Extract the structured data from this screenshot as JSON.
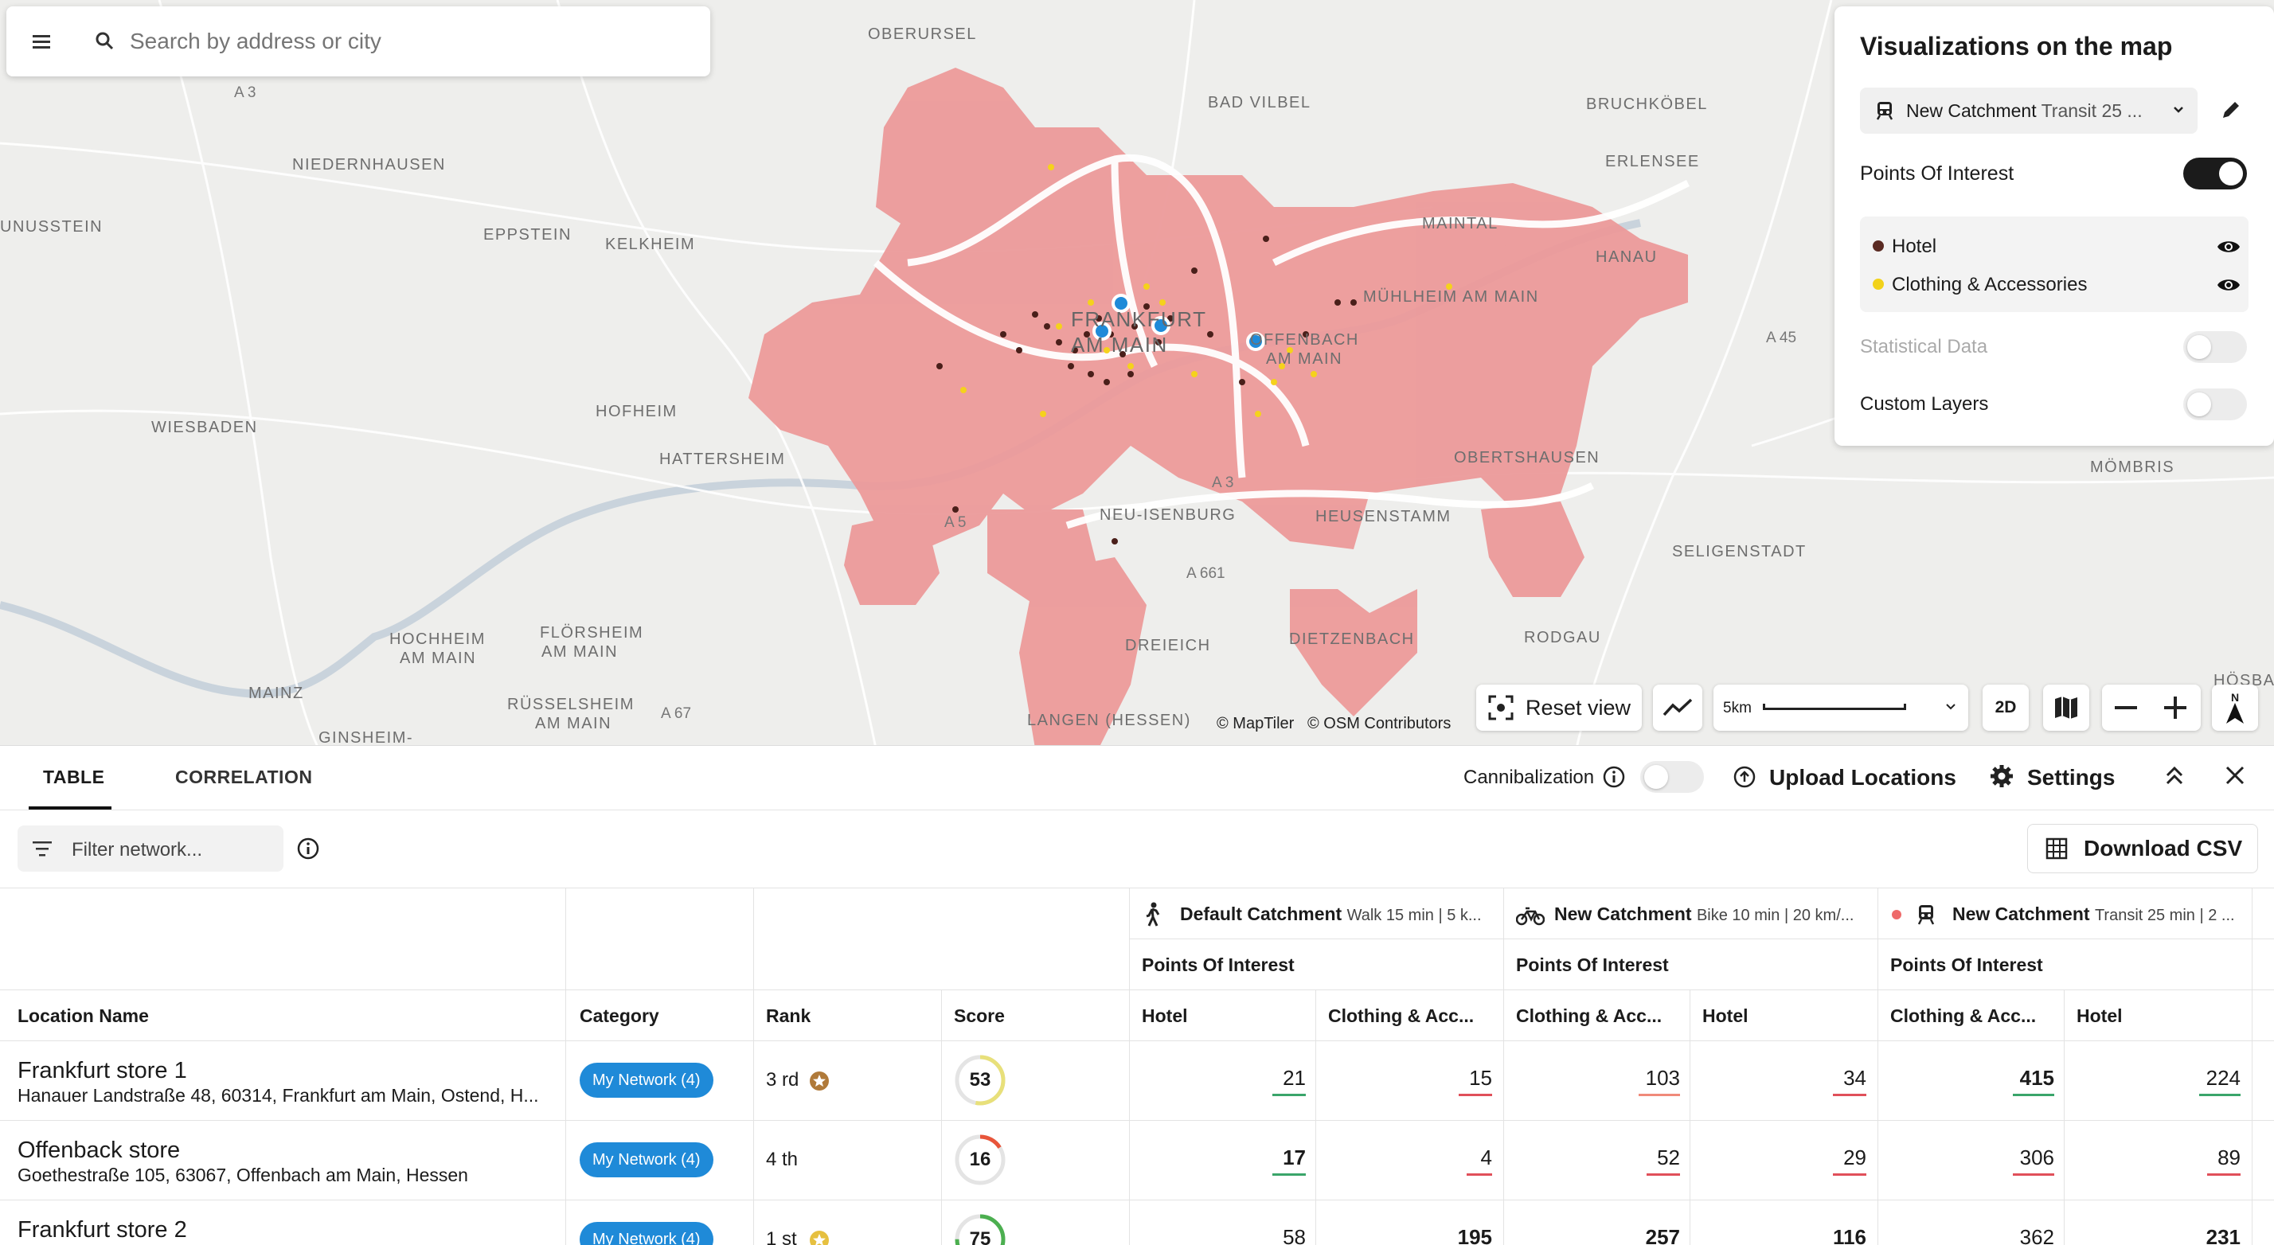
{
  "search": {
    "placeholder": "Search by address or city"
  },
  "map": {
    "towns": {
      "oberursel": "OBERURSEL",
      "bad_vilbel": "BAD VILBEL",
      "bruchkobel": "BRUCHKÖBEL",
      "niedernhausen": "NIEDERNHAUSEN",
      "eppstein": "EPPSTEIN",
      "kelkheim": "KELKHEIM",
      "erlensee": "ERLENSEE",
      "maintal": "MAINTAL",
      "hanau": "HANAU",
      "muhlheim": "MÜHLHEIM AM MAIN",
      "frankfurt_1": "FRANKFURT",
      "frankfurt_2": "AM MAIN",
      "offenbach_1": "OFFENBACH",
      "offenbach_2": "AM MAIN",
      "wiesbaden": "WIESBADEN",
      "hofheim": "HOFHEIM",
      "hattersheim": "HATTERSHEIM",
      "obertshausen": "OBERTSHAUSEN",
      "mombris": "MÖMBRIS",
      "neu_isenburg": "NEU-ISENBURG",
      "heusenstamm": "HEUSENSTAMM",
      "seligenstadt": "SELIGENSTADT",
      "dreieich": "DREIEICH",
      "dietzenbach": "DIETZENBACH",
      "rodgau": "RODGAU",
      "hochheim_1": "HOCHHEIM",
      "hochheim_2": "AM MAIN",
      "florsheim_1": "FLÖRSHEIM",
      "florsheim_2": "AM MAIN",
      "mainz": "MAINZ",
      "russelsheim_1": "RÜSSELSHEIM",
      "russelsheim_2": "AM MAIN",
      "langen": "LANGEN (HESSEN)",
      "ginsheim": "GINSHEIM-",
      "unusstein": "UNUSSTEIN",
      "hosbach": "HÖSBACH"
    },
    "roads": {
      "a3": "A 3",
      "a3b": "A 3",
      "a45": "A 45",
      "a5": "A 5",
      "a661": "A 661",
      "a67": "A 67"
    },
    "attribution": {
      "maptiler": "© MapTiler",
      "osm": "© OSM Contributors"
    }
  },
  "map_controls": {
    "reset_view": "Reset view",
    "scale": "5km",
    "mode": "2D",
    "north": "N"
  },
  "viz_panel": {
    "title": "Visualizations on the map",
    "catchment_name": "New Catchment",
    "catchment_detail": "Transit 25 ...",
    "poi_label": "Points Of Interest",
    "poi_items": [
      {
        "label": "Hotel",
        "color": "#5a2a22"
      },
      {
        "label": "Clothing & Accessories",
        "color": "#f2d21a"
      }
    ],
    "statistical_label": "Statistical Data",
    "custom_label": "Custom Layers"
  },
  "panel": {
    "tabs": [
      "TABLE",
      "CORRELATION"
    ],
    "cannibalization": "Cannibalization",
    "upload": "Upload Locations",
    "settings": "Settings",
    "filter_placeholder": "Filter network...",
    "download": "Download CSV"
  },
  "table": {
    "catchments": [
      {
        "name": "Default Catchment",
        "detail": "Walk 15 min | 5 k..."
      },
      {
        "name": "New Catchment",
        "detail": "Bike 10 min | 20 km/..."
      },
      {
        "name": "New Catchment",
        "detail": "Transit 25 min | 2 ..."
      }
    ],
    "poi_group": "Points Of Interest",
    "columns": [
      "Location Name",
      "Category",
      "Rank",
      "Score",
      "Hotel",
      "Clothing & Acc...",
      "Clothing & Acc...",
      "Hotel",
      "Clothing & Acc...",
      "Hotel"
    ],
    "rows": [
      {
        "name": "Frankfurt store 1",
        "address": "Hanauer Landstraße 48, 60314, Frankfurt am Main, Ostend, H...",
        "category": "My Network (4)",
        "rank": "3 rd",
        "score": "53",
        "score_value": 53,
        "values": [
          "21",
          "15",
          "103",
          "34",
          "415",
          "224"
        ]
      },
      {
        "name": "Offenback store",
        "address": "Goethestraße 105, 63067, Offenbach am Main, Hessen",
        "category": "My Network (4)",
        "rank": "4 th",
        "score": "16",
        "score_value": 16,
        "values": [
          "17",
          "4",
          "52",
          "29",
          "306",
          "89"
        ]
      },
      {
        "name": "Frankfurt store 2",
        "address": "",
        "category": "My Network (4)",
        "rank": "1 st",
        "score": "75",
        "score_value": 75,
        "values": [
          "58",
          "195",
          "257",
          "116",
          "362",
          "231"
        ]
      }
    ]
  }
}
